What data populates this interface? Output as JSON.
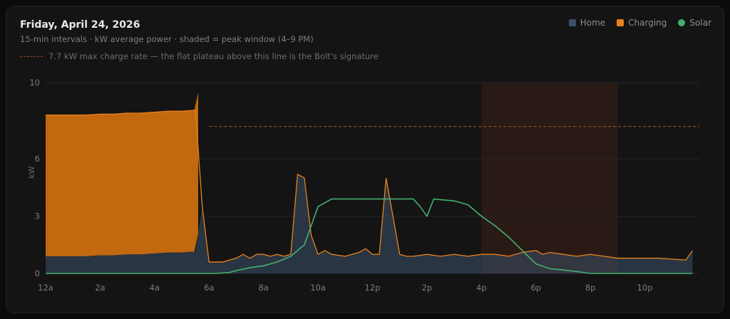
{
  "header": {
    "title": "Friday, April 24, 2026",
    "subtitle": "15-min intervals · kW average power · shaded = peak window (4–9 PM)",
    "note": "7.7 kW max charge rate — the flat plateau above this line is the Bolt's signature"
  },
  "legend": [
    {
      "label": "Home",
      "color": "#3b5068",
      "shape": "square"
    },
    {
      "label": "Charging",
      "color": "#e8821e",
      "shape": "square"
    },
    {
      "label": "Solar",
      "color": "#45b06f",
      "shape": "circle"
    }
  ],
  "chart_data": {
    "type": "area",
    "ylabel": "kW",
    "ylim": [
      0,
      10
    ],
    "yticks": [
      0,
      3,
      6,
      10
    ],
    "xlim": [
      0,
      24
    ],
    "xticks": [
      {
        "x": 0,
        "label": "12a"
      },
      {
        "x": 2,
        "label": "2a"
      },
      {
        "x": 4,
        "label": "4a"
      },
      {
        "x": 6,
        "label": "6a"
      },
      {
        "x": 8,
        "label": "8a"
      },
      {
        "x": 10,
        "label": "10a"
      },
      {
        "x": 12,
        "label": "12p"
      },
      {
        "x": 14,
        "label": "2p"
      },
      {
        "x": 16,
        "label": "4p"
      },
      {
        "x": 18,
        "label": "6p"
      },
      {
        "x": 20,
        "label": "8p"
      },
      {
        "x": 22,
        "label": "10p"
      }
    ],
    "reference_line": {
      "y": 7.7,
      "color": "#8a4a2e"
    },
    "peak_window": [
      16,
      21
    ],
    "grid": true,
    "legend_position": "top-right",
    "series": [
      {
        "name": "Home",
        "color": "#3b5068",
        "x": [
          0,
          0.5,
          1,
          1.5,
          2,
          2.5,
          3,
          3.5,
          4,
          4.5,
          5,
          5.5,
          5.75,
          6,
          6.25,
          6.5,
          7,
          7.25,
          7.5,
          7.75,
          8,
          8.25,
          8.5,
          8.75,
          9,
          9.25,
          9.5,
          9.75,
          10,
          10.25,
          10.5,
          11,
          11.5,
          11.75,
          12,
          12.25,
          12.5,
          12.75,
          13,
          13.25,
          13.5,
          14,
          14.5,
          15,
          15.5,
          16,
          16.5,
          17,
          17.5,
          18,
          18.25,
          18.5,
          19,
          19.5,
          20,
          20.5,
          21,
          21.5,
          22,
          22.5,
          23,
          23.5,
          23.75
        ],
        "values": [
          0.9,
          0.9,
          0.9,
          0.9,
          0.95,
          0.95,
          1.0,
          1.0,
          1.05,
          1.1,
          1.1,
          1.15,
          3.5,
          0.6,
          0.6,
          0.6,
          0.8,
          1.0,
          0.8,
          1.0,
          1.0,
          0.9,
          1.0,
          0.9,
          1.0,
          5.2,
          5.0,
          2.0,
          1.0,
          1.2,
          1.0,
          0.9,
          1.1,
          1.3,
          1.0,
          1.0,
          5.0,
          3.0,
          1.0,
          0.9,
          0.9,
          1.0,
          0.9,
          1.0,
          0.9,
          1.0,
          1.0,
          0.9,
          1.1,
          1.2,
          1.0,
          1.1,
          1.0,
          0.9,
          1.0,
          0.9,
          0.8,
          0.8,
          0.8,
          0.8,
          0.75,
          0.7,
          1.2
        ]
      },
      {
        "name": "Charging",
        "color": "#e8821e",
        "x": [
          0,
          5.6
        ],
        "values": [
          7.4,
          7.4
        ]
      },
      {
        "name": "Solar",
        "color": "#45b06f",
        "x": [
          0,
          6.25,
          6.75,
          7,
          7.5,
          8,
          8.5,
          9,
          9.5,
          9.75,
          10,
          10.5,
          11,
          12,
          13,
          13.5,
          13.75,
          14,
          14.25,
          15,
          15.5,
          16,
          16.5,
          17,
          17.5,
          18,
          18.5,
          19,
          19.5,
          20,
          21,
          22,
          23,
          23.75
        ],
        "values": [
          0,
          0,
          0.05,
          0.15,
          0.3,
          0.4,
          0.6,
          0.9,
          1.5,
          2.5,
          3.5,
          3.9,
          3.9,
          3.9,
          3.9,
          3.9,
          3.5,
          3.0,
          3.9,
          3.8,
          3.6,
          3.0,
          2.5,
          1.9,
          1.2,
          0.5,
          0.25,
          0.18,
          0.1,
          0.0,
          0.0,
          0.0,
          0.0,
          0.0
        ]
      }
    ]
  }
}
